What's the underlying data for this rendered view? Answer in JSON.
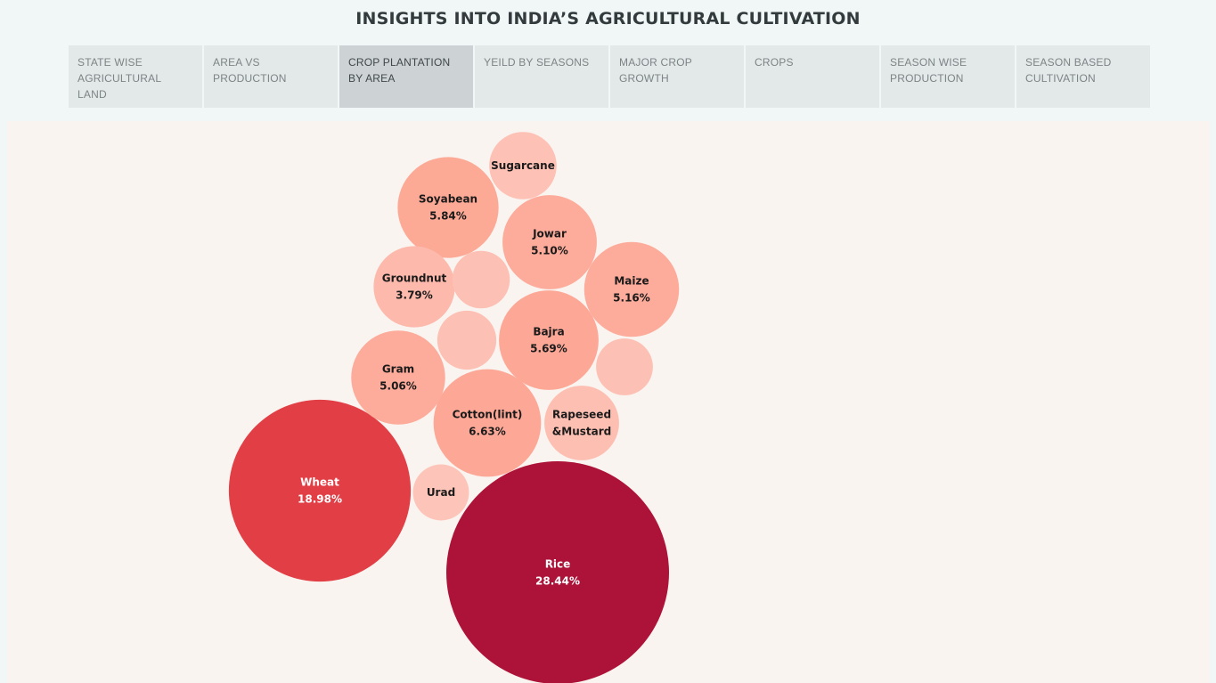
{
  "header": {
    "title": "INSIGHTS INTO INDIA’S AGRICULTURAL CULTIVATION"
  },
  "tabs": [
    {
      "label": "STATE WISE AGRICULTURAL LAND",
      "active": false
    },
    {
      "label": "AREA VS PRODUCTION",
      "active": false
    },
    {
      "label": "CROP PLANTATION BY AREA",
      "active": true
    },
    {
      "label": "YEILD BY SEASONS",
      "active": false
    },
    {
      "label": "MAJOR CROP GROWTH",
      "active": false
    },
    {
      "label": "CROPS",
      "active": false
    },
    {
      "label": "SEASON WISE PRODUCTION",
      "active": false
    },
    {
      "label": "SEASON BASED CULTIVATION",
      "active": false
    }
  ],
  "chart_data": {
    "type": "bubble",
    "title": "",
    "unit": "% of total area",
    "bubbles": [
      {
        "name": "Rice",
        "value": 28.44,
        "label": "28.44%",
        "color": "#ad1238",
        "text_color": "#ffffff"
      },
      {
        "name": "Wheat",
        "value": 18.98,
        "label": "18.98%",
        "color": "#e23e45",
        "text_color": "#ffffff"
      },
      {
        "name": "Cotton(lint)",
        "value": 6.63,
        "label": "6.63%",
        "color": "#fda897",
        "text_color": "#1a1a1a"
      },
      {
        "name": "Soyabean",
        "value": 5.84,
        "label": "5.84%",
        "color": "#fca996",
        "text_color": "#1a1a1a"
      },
      {
        "name": "Bajra",
        "value": 5.69,
        "label": "5.69%",
        "color": "#fda897",
        "text_color": "#1a1a1a"
      },
      {
        "name": "Maize",
        "value": 5.16,
        "label": "5.16%",
        "color": "#fdab9a",
        "text_color": "#1a1a1a"
      },
      {
        "name": "Jowar",
        "value": 5.1,
        "label": "5.10%",
        "color": "#fdab9a",
        "text_color": "#1a1a1a"
      },
      {
        "name": "Gram",
        "value": 5.06,
        "label": "5.06%",
        "color": "#fdab9a",
        "text_color": "#1a1a1a"
      },
      {
        "name": "Groundnut",
        "value": 3.79,
        "label": "3.79%",
        "color": "#fdb9ab",
        "text_color": "#1a1a1a"
      },
      {
        "name": "Rapeseed &Mustard",
        "value": 3.2,
        "label": "",
        "color": "#fdbfb2",
        "text_color": "#1a1a1a"
      },
      {
        "name": "Sugarcane",
        "value": 2.6,
        "label": "",
        "color": "#fdc1b5",
        "text_color": "#1a1a1a"
      },
      {
        "name": "Urad",
        "value": 1.8,
        "label": "",
        "color": "#fdc5b9",
        "text_color": "#1a1a1a"
      },
      {
        "name": "",
        "value": 1.9,
        "label": "",
        "color": "#fdc0b4",
        "text_color": "#1a1a1a"
      },
      {
        "name": "",
        "value": 2.0,
        "label": "",
        "color": "#fdc0b4",
        "text_color": "#1a1a1a"
      },
      {
        "name": "",
        "value": 1.85,
        "label": "",
        "color": "#fdc0b4",
        "text_color": "#1a1a1a"
      }
    ]
  }
}
